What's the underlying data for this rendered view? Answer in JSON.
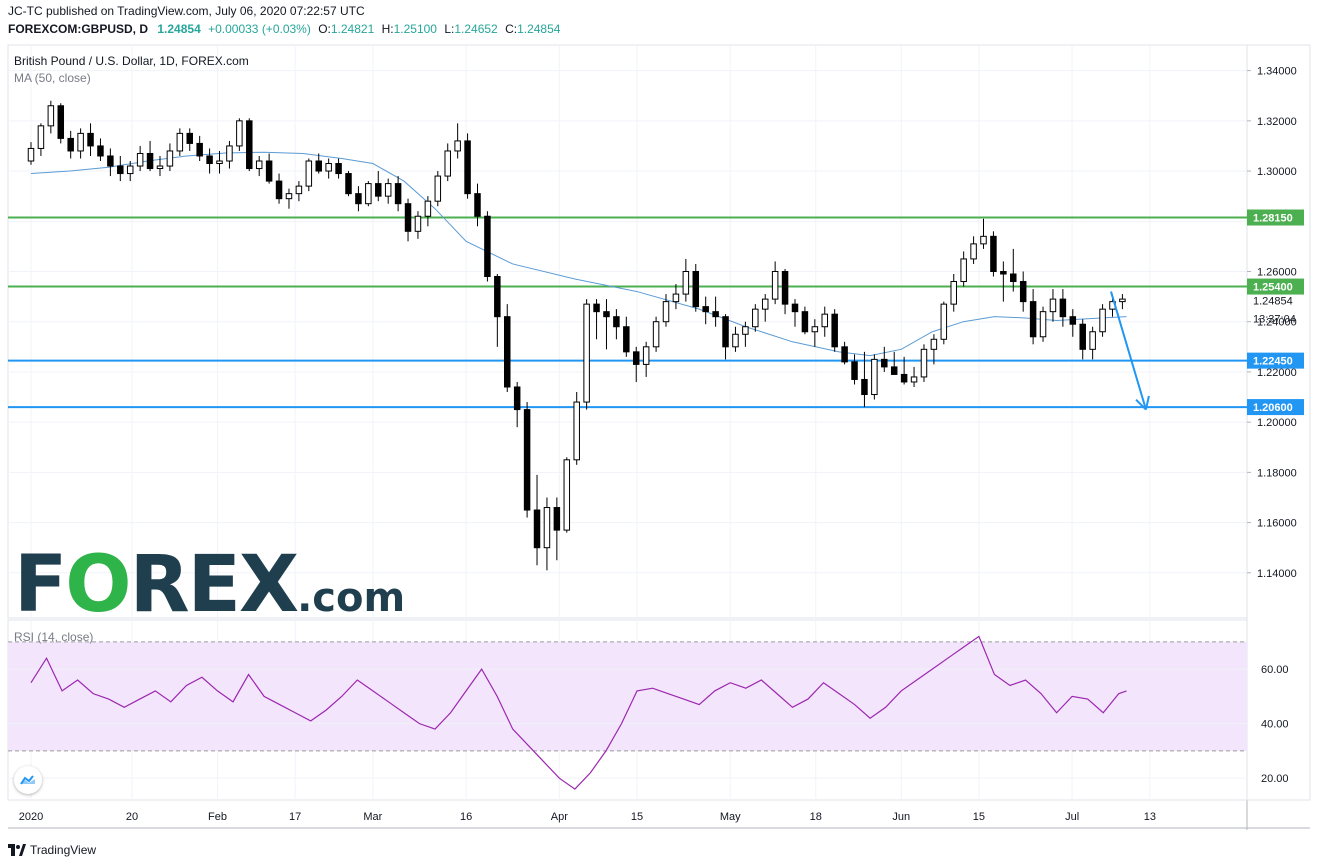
{
  "header": {
    "line1": "JC-TC published on TradingView.com, July 06, 2020 07:22:57 UTC",
    "symbol": "FOREXCOM:GBPUSD, D",
    "last": "1.24854",
    "change": "+0.00033 (+0.03%)",
    "o_label": "O:",
    "o": "1.24821",
    "h_label": "H:",
    "h": "1.25100",
    "l_label": "L:",
    "l": "1.24652",
    "c_label": "C:",
    "c": "1.24854"
  },
  "legend": {
    "title": "British Pound / U.S. Dollar, 1D, FOREX.com",
    "ma": "MA (50, close)",
    "rsi": "RSI (14, close)"
  },
  "logo": {
    "brand_left": "F",
    "brand_o": "O",
    "brand_right": "REX",
    "brand_tld": ".com"
  },
  "footer": {
    "brand": "TradingView"
  },
  "colors": {
    "up": "#ffffff",
    "down": "#000000",
    "green_line": "#4caf50",
    "blue_line": "#2196f3",
    "ma": "#5b9bd5",
    "rsi": "#9c27b0",
    "rsi_band": "#f3e5fb"
  },
  "chart_data": [
    {
      "type": "candlestick",
      "title": "British Pound / U.S. Dollar, 1D, FOREX.com",
      "ylim": [
        1.122,
        1.3502
      ],
      "y_ticks": [
        "1.34000",
        "1.32000",
        "1.30000",
        "1.28000",
        "1.26000",
        "1.24000",
        "1.22000",
        "1.20000",
        "1.18000",
        "1.16000",
        "1.14000"
      ],
      "x_ticks": [
        {
          "day": 0,
          "label": "2020"
        },
        {
          "day": 13,
          "label": "20"
        },
        {
          "day": 24,
          "label": "Feb"
        },
        {
          "day": 34,
          "label": "17"
        },
        {
          "day": 44,
          "label": "Mar"
        },
        {
          "day": 56,
          "label": "16"
        },
        {
          "day": 68,
          "label": "Apr"
        },
        {
          "day": 78,
          "label": "15"
        },
        {
          "day": 90,
          "label": "May"
        },
        {
          "day": 101,
          "label": "18"
        },
        {
          "day": 112,
          "label": "Jun"
        },
        {
          "day": 122,
          "label": "15"
        },
        {
          "day": 134,
          "label": "Jul"
        },
        {
          "day": 144,
          "label": "13"
        }
      ],
      "x_max_day": 152,
      "levels": [
        {
          "value": 1.2815,
          "label": "1.28150",
          "color": "#4caf50"
        },
        {
          "value": 1.254,
          "label": "1.25400",
          "color": "#4caf50"
        },
        {
          "value": 1.2245,
          "label": "1.22450",
          "color": "#2196f3"
        },
        {
          "value": 1.206,
          "label": "1.20600",
          "color": "#2196f3"
        }
      ],
      "price_label": {
        "value": 1.24854,
        "label": "1.24854",
        "countdown": "13:37:04"
      },
      "arrow": {
        "from": [
          139,
          1.252
        ],
        "to": [
          143.5,
          1.205
        ]
      },
      "candles": [
        [
          1.304,
          1.3115,
          1.3025,
          1.309
        ],
        [
          1.309,
          1.319,
          1.306,
          1.318
        ],
        [
          1.318,
          1.328,
          1.315,
          1.326
        ],
        [
          1.326,
          1.327,
          1.311,
          1.313
        ],
        [
          1.313,
          1.316,
          1.305,
          1.308
        ],
        [
          1.308,
          1.317,
          1.305,
          1.315
        ],
        [
          1.315,
          1.319,
          1.306,
          1.31
        ],
        [
          1.31,
          1.313,
          1.304,
          1.306
        ],
        [
          1.306,
          1.309,
          1.298,
          1.302
        ],
        [
          1.302,
          1.306,
          1.296,
          1.299
        ],
        [
          1.299,
          1.304,
          1.296,
          1.302
        ],
        [
          1.302,
          1.31,
          1.3,
          1.307
        ],
        [
          1.307,
          1.312,
          1.3,
          1.301
        ],
        [
          1.301,
          1.306,
          1.298,
          1.302
        ],
        [
          1.302,
          1.311,
          1.3,
          1.308
        ],
        [
          1.308,
          1.317,
          1.306,
          1.315
        ],
        [
          1.315,
          1.317,
          1.308,
          1.311
        ],
        [
          1.311,
          1.314,
          1.304,
          1.306
        ],
        [
          1.306,
          1.309,
          1.299,
          1.303
        ],
        [
          1.303,
          1.308,
          1.299,
          1.304
        ],
        [
          1.304,
          1.312,
          1.301,
          1.31
        ],
        [
          1.31,
          1.321,
          1.308,
          1.32
        ],
        [
          1.32,
          1.321,
          1.3,
          1.301
        ],
        [
          1.301,
          1.306,
          1.298,
          1.304
        ],
        [
          1.304,
          1.307,
          1.295,
          1.296
        ],
        [
          1.296,
          1.299,
          1.287,
          1.289
        ],
        [
          1.289,
          1.293,
          1.285,
          1.291
        ],
        [
          1.291,
          1.296,
          1.288,
          1.294
        ],
        [
          1.294,
          1.305,
          1.292,
          1.304
        ],
        [
          1.304,
          1.307,
          1.299,
          1.3
        ],
        [
          1.3,
          1.305,
          1.297,
          1.303
        ],
        [
          1.303,
          1.305,
          1.297,
          1.299
        ],
        [
          1.299,
          1.3,
          1.29,
          1.291
        ],
        [
          1.291,
          1.294,
          1.284,
          1.287
        ],
        [
          1.287,
          1.296,
          1.286,
          1.295
        ],
        [
          1.295,
          1.3,
          1.288,
          1.29
        ],
        [
          1.29,
          1.297,
          1.287,
          1.295
        ],
        [
          1.295,
          1.298,
          1.284,
          1.287
        ],
        [
          1.287,
          1.289,
          1.272,
          1.276
        ],
        [
          1.276,
          1.284,
          1.273,
          1.282
        ],
        [
          1.282,
          1.29,
          1.278,
          1.288
        ],
        [
          1.288,
          1.3,
          1.286,
          1.298
        ],
        [
          1.298,
          1.311,
          1.296,
          1.308
        ],
        [
          1.308,
          1.319,
          1.305,
          1.312
        ],
        [
          1.312,
          1.315,
          1.289,
          1.291
        ],
        [
          1.291,
          1.295,
          1.278,
          1.282
        ],
        [
          1.282,
          1.284,
          1.256,
          1.258
        ],
        [
          1.258,
          1.259,
          1.23,
          1.242
        ],
        [
          1.242,
          1.247,
          1.212,
          1.214
        ],
        [
          1.214,
          1.216,
          1.198,
          1.205
        ],
        [
          1.205,
          1.208,
          1.162,
          1.165
        ],
        [
          1.165,
          1.179,
          1.143,
          1.15
        ],
        [
          1.15,
          1.17,
          1.141,
          1.166
        ],
        [
          1.166,
          1.17,
          1.145,
          1.157
        ],
        [
          1.157,
          1.186,
          1.156,
          1.185
        ],
        [
          1.185,
          1.212,
          1.183,
          1.208
        ],
        [
          1.208,
          1.249,
          1.205,
          1.247
        ],
        [
          1.247,
          1.249,
          1.233,
          1.244
        ],
        [
          1.244,
          1.249,
          1.229,
          1.242
        ],
        [
          1.242,
          1.245,
          1.233,
          1.238
        ],
        [
          1.238,
          1.242,
          1.226,
          1.228
        ],
        [
          1.228,
          1.23,
          1.216,
          1.223
        ],
        [
          1.223,
          1.232,
          1.218,
          1.23
        ],
        [
          1.23,
          1.242,
          1.228,
          1.24
        ],
        [
          1.24,
          1.251,
          1.238,
          1.248
        ],
        [
          1.248,
          1.255,
          1.245,
          1.251
        ],
        [
          1.251,
          1.265,
          1.248,
          1.26
        ],
        [
          1.26,
          1.263,
          1.244,
          1.246
        ],
        [
          1.246,
          1.25,
          1.239,
          1.244
        ],
        [
          1.244,
          1.25,
          1.238,
          1.242
        ],
        [
          1.242,
          1.243,
          1.225,
          1.23
        ],
        [
          1.23,
          1.238,
          1.228,
          1.235
        ],
        [
          1.235,
          1.24,
          1.23,
          1.238
        ],
        [
          1.238,
          1.247,
          1.236,
          1.245
        ],
        [
          1.245,
          1.251,
          1.24,
          1.249
        ],
        [
          1.249,
          1.264,
          1.247,
          1.26
        ],
        [
          1.26,
          1.261,
          1.243,
          1.247
        ],
        [
          1.247,
          1.249,
          1.238,
          1.244
        ],
        [
          1.244,
          1.246,
          1.235,
          1.236
        ],
        [
          1.236,
          1.241,
          1.23,
          1.238
        ],
        [
          1.238,
          1.246,
          1.234,
          1.243
        ],
        [
          1.243,
          1.245,
          1.228,
          1.23
        ],
        [
          1.23,
          1.232,
          1.223,
          1.224
        ],
        [
          1.224,
          1.227,
          1.215,
          1.217
        ],
        [
          1.217,
          1.228,
          1.206,
          1.211
        ],
        [
          1.211,
          1.227,
          1.209,
          1.225
        ],
        [
          1.225,
          1.23,
          1.22,
          1.222
        ],
        [
          1.222,
          1.228,
          1.219,
          1.219
        ],
        [
          1.219,
          1.226,
          1.215,
          1.216
        ],
        [
          1.216,
          1.222,
          1.214,
          1.218
        ],
        [
          1.218,
          1.231,
          1.216,
          1.229
        ],
        [
          1.229,
          1.235,
          1.223,
          1.233
        ],
        [
          1.233,
          1.248,
          1.231,
          1.247
        ],
        [
          1.247,
          1.259,
          1.244,
          1.256
        ],
        [
          1.256,
          1.268,
          1.254,
          1.265
        ],
        [
          1.265,
          1.274,
          1.263,
          1.271
        ],
        [
          1.271,
          1.281,
          1.269,
          1.274
        ],
        [
          1.274,
          1.276,
          1.258,
          1.26
        ],
        [
          1.26,
          1.264,
          1.248,
          1.259
        ],
        [
          1.259,
          1.269,
          1.252,
          1.256
        ],
        [
          1.256,
          1.26,
          1.244,
          1.248
        ],
        [
          1.248,
          1.253,
          1.231,
          1.234
        ],
        [
          1.234,
          1.246,
          1.232,
          1.244
        ],
        [
          1.244,
          1.253,
          1.24,
          1.249
        ],
        [
          1.249,
          1.253,
          1.238,
          1.242
        ],
        [
          1.242,
          1.245,
          1.234,
          1.239
        ],
        [
          1.239,
          1.241,
          1.225,
          1.229
        ],
        [
          1.229,
          1.238,
          1.225,
          1.236
        ],
        [
          1.236,
          1.247,
          1.234,
          1.245
        ],
        [
          1.245,
          1.251,
          1.242,
          1.248
        ],
        [
          1.248,
          1.251,
          1.245,
          1.249
        ]
      ],
      "ma50": [
        [
          0,
          1.299
        ],
        [
          5,
          1.3
        ],
        [
          10,
          1.3015
        ],
        [
          15,
          1.304
        ],
        [
          20,
          1.306
        ],
        [
          25,
          1.3072
        ],
        [
          30,
          1.3075
        ],
        [
          35,
          1.307
        ],
        [
          40,
          1.305
        ],
        [
          44,
          1.303
        ],
        [
          48,
          1.296
        ],
        [
          52,
          1.285
        ],
        [
          56,
          1.272
        ],
        [
          62,
          1.263
        ],
        [
          70,
          1.257
        ],
        [
          78,
          1.252
        ],
        [
          86,
          1.245
        ],
        [
          92,
          1.238
        ],
        [
          98,
          1.232
        ],
        [
          104,
          1.228
        ],
        [
          108,
          1.2265
        ],
        [
          112,
          1.229
        ],
        [
          116,
          1.236
        ],
        [
          120,
          1.24
        ],
        [
          124,
          1.242
        ],
        [
          128,
          1.2415
        ],
        [
          132,
          1.2405
        ],
        [
          136,
          1.2412
        ],
        [
          141,
          1.242
        ]
      ],
      "candle_start_day": 0,
      "candle_day_step": 1.277
    },
    {
      "type": "line",
      "title": "RSI (14, close)",
      "ylim": [
        12,
        78
      ],
      "band": [
        30,
        70
      ],
      "y_ticks": [
        "60.00",
        "40.00",
        "20.00"
      ],
      "x": [
        0,
        2,
        4,
        6,
        8,
        10,
        12,
        14,
        16,
        18,
        20,
        22,
        24,
        26,
        28,
        30,
        32,
        34,
        36,
        38,
        40,
        42,
        44,
        46,
        48,
        50,
        52,
        54,
        56,
        58,
        60,
        62,
        64,
        66,
        68,
        70,
        72,
        74,
        76,
        78,
        80,
        82,
        84,
        86,
        88,
        90,
        92,
        94,
        96,
        98,
        100,
        102,
        104,
        106,
        108,
        110,
        112,
        114,
        116,
        118,
        120,
        122,
        124,
        126,
        128,
        130,
        132,
        134,
        136,
        138,
        140,
        141
      ],
      "values": [
        55,
        64,
        52,
        56,
        51,
        49,
        46,
        49,
        52,
        48,
        54,
        57,
        52,
        48,
        58,
        50,
        47,
        44,
        41,
        45,
        50,
        56,
        52,
        48,
        44,
        40,
        38,
        44,
        52,
        60,
        50,
        38,
        32,
        26,
        20,
        16,
        22,
        30,
        40,
        52,
        53,
        51,
        49,
        47,
        52,
        55,
        53,
        56,
        51,
        46,
        49,
        55,
        51,
        47,
        42,
        46,
        52,
        56,
        60,
        64,
        68,
        72,
        58,
        54,
        56,
        51,
        44,
        50,
        49,
        44,
        51,
        52
      ]
    }
  ]
}
